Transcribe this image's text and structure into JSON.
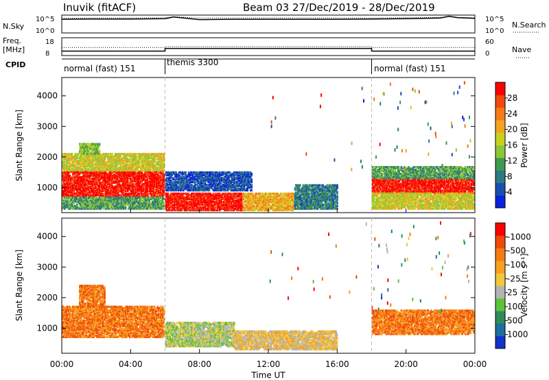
{
  "header": {
    "station": "Inuvik (fitACF)",
    "beam_date": "Beam 03  27/Dec/2019 - 28/Dec/2019"
  },
  "chart_data": [
    {
      "type": "line",
      "name": "sky-noise-panel",
      "left_label": "N.Sky",
      "right_label": "N.Search",
      "left_ticks": [
        "10^5",
        "10^0"
      ],
      "right_ticks": [
        "10^5",
        "10^0"
      ],
      "x": [
        0,
        2,
        4,
        6,
        6.5,
        8,
        10,
        12,
        14,
        16,
        18,
        20,
        22,
        22.5,
        23,
        24
      ],
      "series": [
        {
          "values": [
            4.2,
            4.3,
            4.3,
            4.4,
            4.9,
            4.1,
            4.2,
            4.2,
            4.2,
            4.2,
            4.3,
            4.4,
            4.6,
            5.1,
            4.7,
            4.5
          ]
        },
        {
          "values": [
            4.5,
            4.6,
            4.6,
            4.7,
            5.0,
            4.6,
            4.6,
            4.6,
            4.6,
            4.6,
            4.6,
            4.7,
            4.8,
            5.2,
            4.8,
            4.7
          ]
        }
      ]
    },
    {
      "type": "line",
      "name": "frequency-panel",
      "left_label": "Freq.",
      "left_unit": "[MHz]",
      "right_label": "Nave",
      "left_ticks": [
        "18",
        "8"
      ],
      "right_ticks": [
        "60",
        "0"
      ],
      "x": [
        0,
        6,
        6,
        18,
        18,
        24
      ],
      "series": [
        {
          "values": [
            10.5,
            10.5,
            12.0,
            12.0,
            10.5,
            10.5
          ]
        },
        {
          "values": [
            12.5,
            12.5,
            13.0,
            13.0,
            12.5,
            12.5
          ]
        }
      ]
    },
    {
      "type": "table",
      "name": "cpid-panel",
      "label": "CPID",
      "segments": [
        {
          "start": 0,
          "end": 6,
          "label": "normal (fast) 151"
        },
        {
          "start": 6,
          "end": 18,
          "label": "themis 3300"
        },
        {
          "start": 18,
          "end": 24,
          "label": "normal (fast) 151"
        }
      ]
    },
    {
      "type": "heatmap",
      "name": "power-panel",
      "ylabel": "Slant Range [km]",
      "yticks": [
        1000,
        2000,
        3000,
        4000
      ],
      "ylim": [
        180,
        4600
      ],
      "xlim": [
        0,
        24
      ],
      "colorbar": {
        "label": "Power [dB]",
        "ticks": [
          "4",
          "8",
          "12",
          "16",
          "20",
          "24",
          "28"
        ],
        "colors": [
          "#0a22e0",
          "#1a4fb0",
          "#2e7a82",
          "#3f9a4e",
          "#8ec63a",
          "#c8d21e",
          "#f2a420",
          "#f77a14",
          "#f24a0e",
          "#ff0000"
        ]
      },
      "regions": [
        {
          "t": [
            0.0,
            5.9
          ],
          "r": [
            700,
            1550
          ],
          "level": 9
        },
        {
          "t": [
            0.0,
            5.9
          ],
          "r": [
            1550,
            2100
          ],
          "level": 5
        },
        {
          "t": [
            1.0,
            2.2
          ],
          "r": [
            2100,
            2450
          ],
          "level": 4
        },
        {
          "t": [
            0.0,
            5.9
          ],
          "r": [
            300,
            700
          ],
          "level": 3
        },
        {
          "t": [
            6.0,
            11.0
          ],
          "r": [
            900,
            1500
          ],
          "level": 1
        },
        {
          "t": [
            6.0,
            10.5
          ],
          "r": [
            250,
            800
          ],
          "level": 9
        },
        {
          "t": [
            10.5,
            13.5
          ],
          "r": [
            250,
            800
          ],
          "level": 6
        },
        {
          "t": [
            13.5,
            16.0
          ],
          "r": [
            300,
            1100
          ],
          "level": 2
        },
        {
          "t": [
            18.0,
            23.9
          ],
          "r": [
            800,
            1300
          ],
          "level": 9
        },
        {
          "t": [
            18.0,
            23.9
          ],
          "r": [
            1300,
            1700
          ],
          "level": 3
        },
        {
          "t": [
            18.0,
            23.9
          ],
          "r": [
            300,
            800
          ],
          "level": 5
        }
      ]
    },
    {
      "type": "heatmap",
      "name": "velocity-panel",
      "ylabel": "Slant Range [km]",
      "xlabel": "Time UT",
      "xticks": [
        "00:00",
        "04:00",
        "08:00",
        "12:00",
        "16:00",
        "20:00",
        "00:00"
      ],
      "yticks": [
        1000,
        2000,
        3000,
        4000
      ],
      "ylim": [
        180,
        4600
      ],
      "xlim": [
        0,
        24
      ],
      "colorbar": {
        "label": "Velocity [m s⁻¹]",
        "ticks": [
          "1000",
          "500",
          "100",
          "25",
          "-25",
          "-100",
          "-500",
          "-1000"
        ],
        "colors": [
          "#1432c8",
          "#1e6ea0",
          "#2e8c5a",
          "#5cc23a",
          "#b4b4b4",
          "#f0c83c",
          "#f7a020",
          "#f57a10",
          "#f04a0a",
          "#ff0000"
        ]
      },
      "regions": [
        {
          "t": [
            0.0,
            5.9
          ],
          "r": [
            700,
            1700
          ],
          "level": 7
        },
        {
          "t": [
            1.0,
            2.5
          ],
          "r": [
            1700,
            2400
          ],
          "level": 7
        },
        {
          "t": [
            6.0,
            10.0
          ],
          "r": [
            400,
            1200
          ],
          "level": 4
        },
        {
          "t": [
            10.0,
            16.0
          ],
          "r": [
            300,
            900
          ],
          "level": 5
        },
        {
          "t": [
            18.0,
            23.9
          ],
          "r": [
            800,
            1600
          ],
          "level": 7
        }
      ]
    }
  ]
}
